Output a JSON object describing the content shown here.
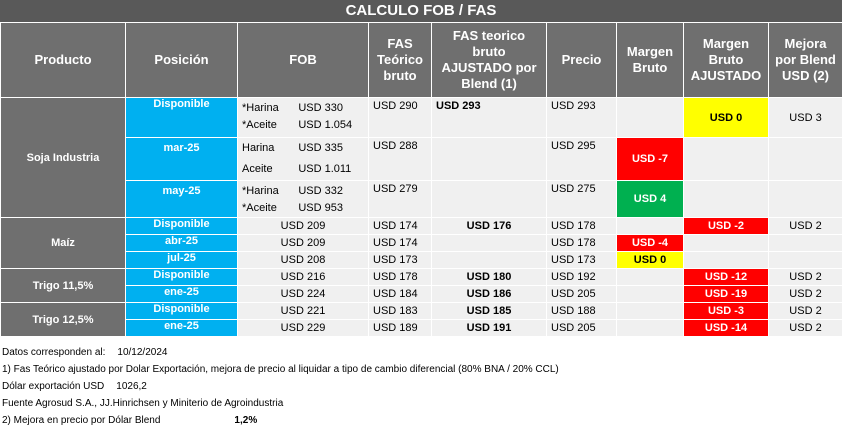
{
  "title": "CALCULO FOB / FAS",
  "headers": {
    "producto": "Producto",
    "posicion": "Posición",
    "fob": "FOB",
    "fas_teorico": "FAS Teórico bruto",
    "fas_ajustado": "FAS teorico bruto AJUSTADO por Blend (1)",
    "precio": "Precio",
    "margen_bruto": "Margen Bruto",
    "margen_ajustado": "Margen Bruto AJUSTADO",
    "mejora": "Mejora por Blend USD (2)"
  },
  "soja": {
    "producto": "Soja Industria",
    "r1": {
      "posicion": "Disponible",
      "fob_l1_label": "*Harina",
      "fob_l1_val": "USD 330",
      "fob_l2_label": "*Aceite",
      "fob_l2_val": "USD 1.054",
      "fas": "USD 290",
      "fas_aj": "USD 293",
      "precio": "USD 293",
      "margen": "",
      "margen_aj": "USD 0",
      "mejora": "USD 3"
    },
    "r2": {
      "posicion": "mar-25",
      "fob_l1_label": "Harina",
      "fob_l1_val": "USD 335",
      "fob_l2_label": "Aceite",
      "fob_l2_val": "USD 1.011",
      "fas": "USD 288",
      "fas_aj": "",
      "precio": "USD 295",
      "margen": "USD -7",
      "margen_aj": "",
      "mejora": ""
    },
    "r3": {
      "posicion": "may-25",
      "fob_l1_label": "*Harina",
      "fob_l1_val": "USD 332",
      "fob_l2_label": "*Aceite",
      "fob_l2_val": "USD 953",
      "fas": "USD 279",
      "fas_aj": "",
      "precio": "USD 275",
      "margen": "USD 4",
      "margen_aj": "",
      "mejora": ""
    }
  },
  "maiz": {
    "producto": "Maíz",
    "rows": [
      {
        "posicion": "Disponible",
        "fob": "USD 209",
        "fas": "USD 174",
        "fas_aj": "USD 176",
        "precio": "USD 178",
        "margen": "",
        "margen_aj": "USD -2",
        "mejora": "USD 2"
      },
      {
        "posicion": "abr-25",
        "fob": "USD 209",
        "fas": "USD 174",
        "fas_aj": "",
        "precio": "USD 178",
        "margen": "USD -4",
        "margen_aj": "",
        "mejora": ""
      },
      {
        "posicion": "jul-25",
        "fob": "USD 208",
        "fas": "USD 173",
        "fas_aj": "",
        "precio": "USD 173",
        "margen": "USD 0",
        "margen_aj": "",
        "mejora": ""
      }
    ]
  },
  "trigo115": {
    "producto": "Trigo 11,5%",
    "rows": [
      {
        "posicion": "Disponible",
        "fob": "USD 216",
        "fas": "USD 178",
        "fas_aj": "USD 180",
        "precio": "USD 192",
        "margen": "",
        "margen_aj": "USD -12",
        "mejora": "USD 2"
      },
      {
        "posicion": "ene-25",
        "fob": "USD 224",
        "fas": "USD 184",
        "fas_aj": "USD 186",
        "precio": "USD 205",
        "margen": "",
        "margen_aj": "USD -19",
        "mejora": "USD 2"
      }
    ]
  },
  "trigo125": {
    "producto": "Trigo 12,5%",
    "rows": [
      {
        "posicion": "Disponible",
        "fob": "USD 221",
        "fas": "USD 183",
        "fas_aj": "USD 185",
        "precio": "USD 188",
        "margen": "",
        "margen_aj": "USD -3",
        "mejora": "USD 2"
      },
      {
        "posicion": "ene-25",
        "fob": "USD 229",
        "fas": "USD 189",
        "fas_aj": "USD 191",
        "precio": "USD 205",
        "margen": "",
        "margen_aj": "USD -14",
        "mejora": "USD 2"
      }
    ]
  },
  "notes": {
    "datos_label": "Datos corresponden al:",
    "datos_val": "10/12/2024",
    "note1": "1) Fas Teórico ajustado por Dolar Exportación, mejora de precio al liquidar a tipo de cambio diferencial (80% BNA / 20% CCL)",
    "dolar_label": "Dólar exportación USD",
    "dolar_val": "1026,2",
    "fuente": "Fuente Agrosud S.A., JJ.Hinrichsen y Miniterio de Agroindustria",
    "note2_label": "2) Mejora en precio por Dólar Blend",
    "note2_val": "1,2%"
  },
  "colors": {
    "header_gray": "#6f6f6f",
    "title_gray": "#595959",
    "position_blue": "#00b0f0",
    "negative_red": "#ff0000",
    "positive_green": "#00b050",
    "neutral_yellow": "#ffff00"
  }
}
